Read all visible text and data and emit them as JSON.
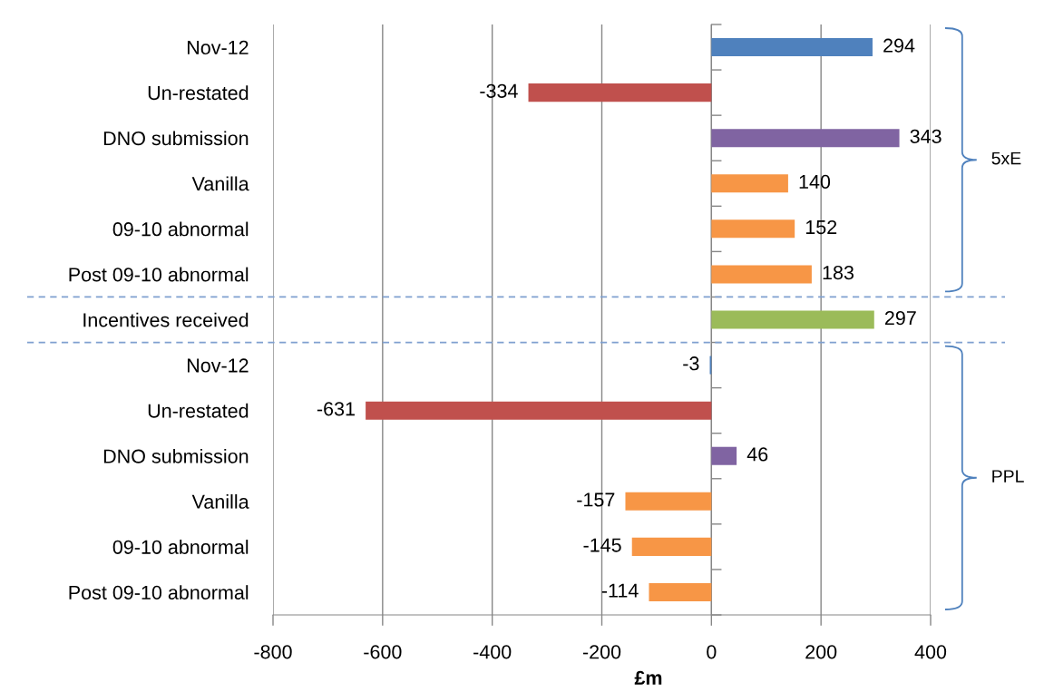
{
  "chart_data": {
    "type": "bar",
    "orientation": "horizontal",
    "xlabel": "£m",
    "categories": [
      "Nov-12",
      "Un-restated",
      "DNO submission",
      "Vanilla",
      "09-10 abnormal",
      "Post 09-10 abnormal",
      "Incentives received",
      "Nov-12",
      "Un-restated",
      "DNO submission",
      "Vanilla",
      "09-10 abnormal",
      "Post 09-10 abnormal"
    ],
    "values": [
      294,
      -334,
      343,
      140,
      152,
      183,
      297,
      -3,
      -631,
      46,
      -157,
      -145,
      -114
    ],
    "colors": [
      "#4f81bd",
      "#c0504d",
      "#8064a2",
      "#f79646",
      "#f79646",
      "#f79646",
      "#9bbb59",
      "#4f81bd",
      "#c0504d",
      "#8064a2",
      "#f79646",
      "#f79646",
      "#f79646"
    ],
    "xlim": [
      -800,
      400
    ],
    "xticks": [
      -800,
      -600,
      -400,
      -200,
      0,
      200,
      400
    ],
    "grid": "x",
    "data_labels": true,
    "annotations": [
      "5xE",
      "PPL"
    ]
  }
}
